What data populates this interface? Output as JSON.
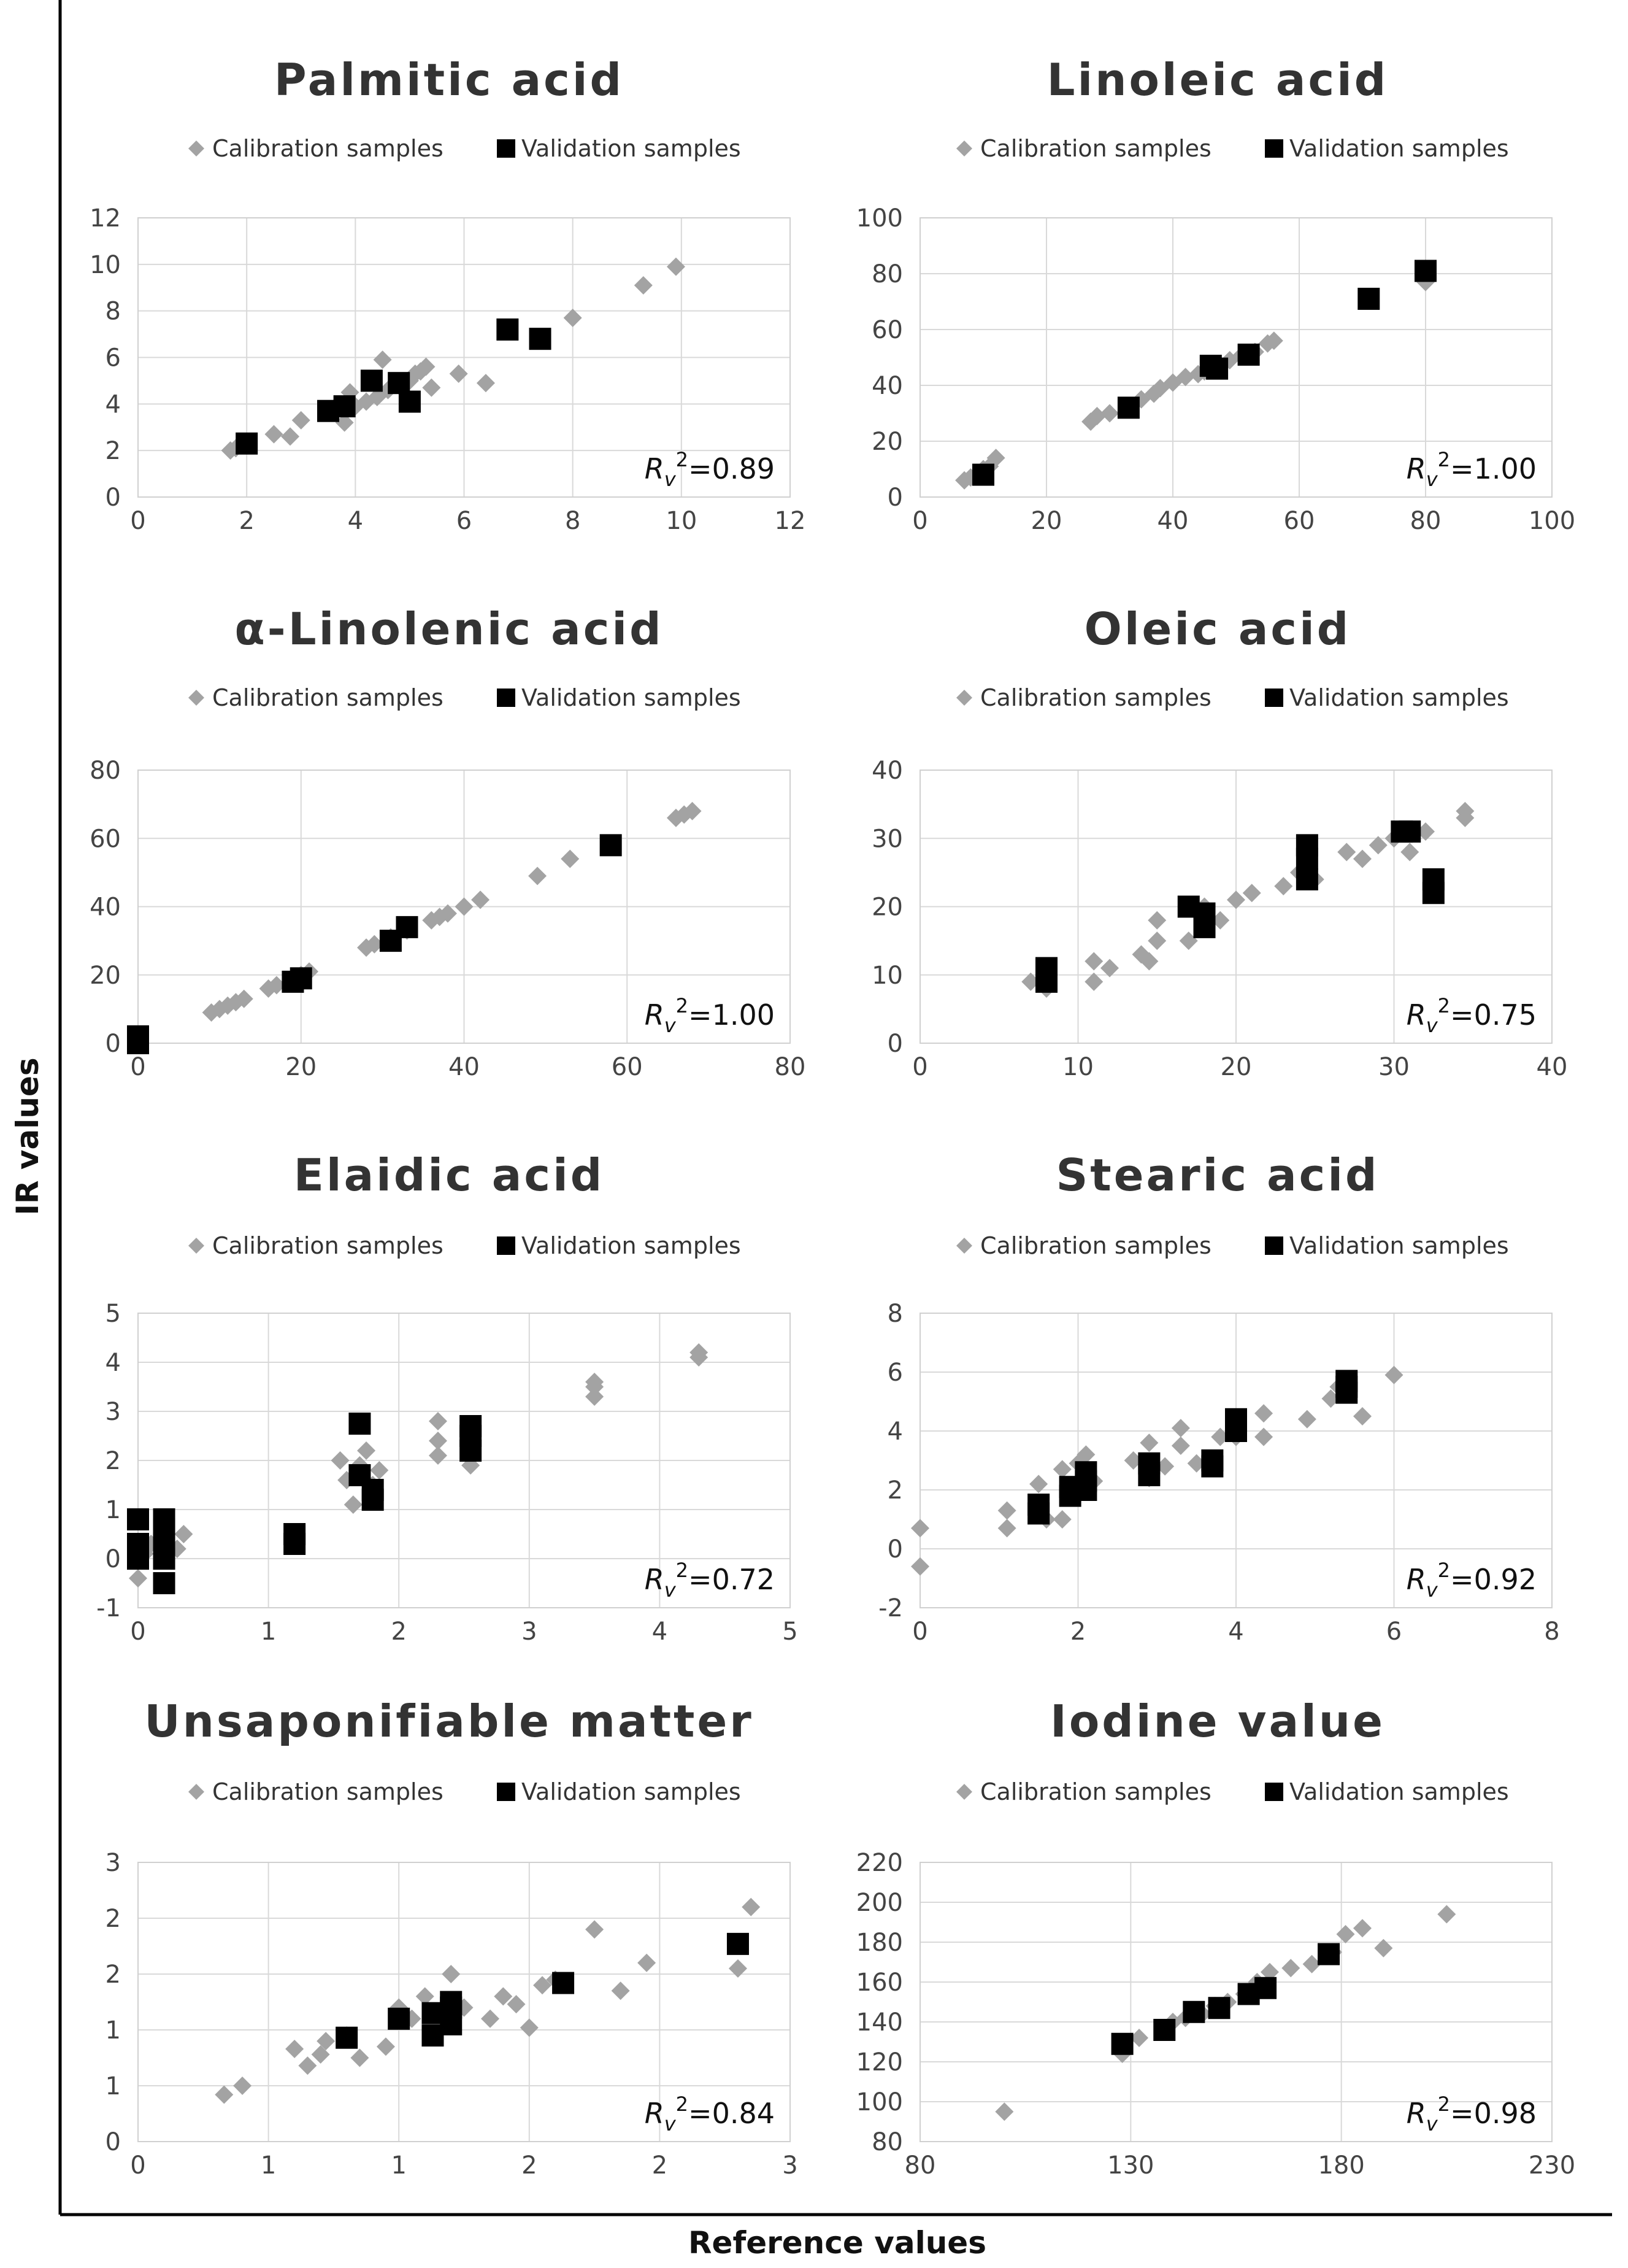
{
  "axes": {
    "y_label": "IR values",
    "x_label": "Reference values"
  },
  "colors": {
    "calibration": "#a3a3a3",
    "validation": "#000000",
    "grid": "#d9d9d9",
    "title": "#333333"
  },
  "chart_data": [
    {
      "type": "scatter",
      "title": "Palmitic acid",
      "legend": [
        "Calibration samples",
        "Validation samples"
      ],
      "r2_value": "=0.89",
      "xlim": [
        0,
        12
      ],
      "ylim": [
        0,
        12
      ],
      "xticks": [
        0,
        2,
        4,
        6,
        8,
        10,
        12
      ],
      "yticks": [
        0,
        2,
        4,
        6,
        8,
        10,
        12
      ],
      "series": [
        {
          "name": "Calibration samples",
          "marker": "diamond",
          "x": [
            1.7,
            1.8,
            2.5,
            2.8,
            3.0,
            3.6,
            3.8,
            4.0,
            4.2,
            4.5,
            4.6,
            4.8,
            5.0,
            5.0,
            5.1,
            5.2,
            5.3,
            5.4,
            5.9,
            6.4,
            8.0,
            9.3,
            9.9,
            3.9,
            4.4
          ],
          "y": [
            2.0,
            2.1,
            2.7,
            2.6,
            3.3,
            3.8,
            3.2,
            3.9,
            4.1,
            5.9,
            4.6,
            4.8,
            4.2,
            5.0,
            5.3,
            5.4,
            5.6,
            4.7,
            5.3,
            4.9,
            7.7,
            9.1,
            9.9,
            4.5,
            4.3
          ]
        },
        {
          "name": "Validation samples",
          "marker": "square",
          "x": [
            2.0,
            3.5,
            3.8,
            4.3,
            4.8,
            5.0,
            6.8,
            7.4
          ],
          "y": [
            2.3,
            3.7,
            3.9,
            5.0,
            4.9,
            4.1,
            7.2,
            6.8
          ]
        }
      ]
    },
    {
      "type": "scatter",
      "title": "Linoleic acid",
      "legend": [
        "Calibration samples",
        "Validation samples"
      ],
      "r2_value": "=1.00",
      "xlim": [
        0,
        100
      ],
      "ylim": [
        0,
        100
      ],
      "xticks": [
        0,
        20,
        40,
        60,
        80,
        100
      ],
      "yticks": [
        0,
        20,
        40,
        60,
        80,
        100
      ],
      "series": [
        {
          "name": "Calibration samples",
          "marker": "diamond",
          "x": [
            7,
            8,
            9,
            10,
            11,
            12,
            27,
            28,
            30,
            33,
            35,
            37,
            38,
            40,
            42,
            44,
            45,
            47,
            49,
            51,
            53,
            55,
            56,
            80
          ],
          "y": [
            6,
            7,
            8,
            10,
            11,
            14,
            27,
            29,
            30,
            32,
            35,
            37,
            39,
            41,
            43,
            44,
            45,
            47,
            49,
            51,
            52,
            55,
            56,
            77
          ]
        },
        {
          "name": "Validation samples",
          "marker": "square",
          "x": [
            10,
            33,
            46,
            47,
            52,
            71,
            80
          ],
          "y": [
            8,
            32,
            47,
            46,
            51,
            71,
            81
          ]
        }
      ]
    },
    {
      "type": "scatter",
      "title": "α-Linolenic acid",
      "legend": [
        "Calibration samples",
        "Validation samples"
      ],
      "r2_value": "=1.00",
      "xlim": [
        0,
        80
      ],
      "ylim": [
        0,
        80
      ],
      "xticks": [
        0,
        20,
        40,
        60,
        80
      ],
      "yticks": [
        0,
        20,
        40,
        60,
        80
      ],
      "series": [
        {
          "name": "Calibration samples",
          "marker": "diamond",
          "x": [
            9,
            10,
            11,
            12,
            13,
            16,
            17,
            20,
            21,
            28,
            29,
            31,
            33,
            36,
            37,
            38,
            40,
            42,
            49,
            53,
            66,
            67,
            68
          ],
          "y": [
            9,
            10,
            11,
            12,
            13,
            16,
            17,
            20,
            21,
            28,
            29,
            31,
            33,
            36,
            37,
            38,
            40,
            42,
            49,
            54,
            66,
            67,
            68
          ]
        },
        {
          "name": "Validation samples",
          "marker": "square",
          "x": [
            0,
            0,
            19,
            20,
            31,
            33,
            58
          ],
          "y": [
            0,
            2,
            18,
            19,
            30,
            34,
            58
          ]
        }
      ]
    },
    {
      "type": "scatter",
      "title": "Oleic acid",
      "legend": [
        "Calibration samples",
        "Validation samples"
      ],
      "r2_value": "=0.75",
      "xlim": [
        0,
        40
      ],
      "ylim": [
        0,
        40
      ],
      "xticks": [
        0,
        10,
        20,
        30,
        40
      ],
      "yticks": [
        0,
        10,
        20,
        30,
        40
      ],
      "series": [
        {
          "name": "Calibration samples",
          "marker": "diamond",
          "x": [
            7,
            8,
            8,
            11,
            11,
            12,
            14,
            14.5,
            15,
            15,
            17,
            18,
            19,
            20,
            21,
            23,
            24,
            25,
            27,
            28,
            29,
            30,
            31,
            32,
            34.5,
            34.5
          ],
          "y": [
            9,
            10,
            8,
            9,
            12,
            11,
            13,
            12,
            15,
            18,
            15,
            20,
            18,
            21,
            22,
            23,
            25,
            24,
            28,
            27,
            29,
            30,
            28,
            31,
            34,
            33
          ]
        },
        {
          "name": "Validation samples",
          "marker": "square",
          "x": [
            8,
            8,
            17,
            18,
            18,
            24.5,
            24.5,
            24.5,
            30.5,
            31,
            32.5,
            32.5
          ],
          "y": [
            9,
            11,
            20,
            17,
            19,
            24,
            27,
            29,
            31,
            31,
            22,
            24
          ]
        }
      ]
    },
    {
      "type": "scatter",
      "title": "Elaidic acid",
      "legend": [
        "Calibration samples",
        "Validation samples"
      ],
      "r2_value": "=0.72",
      "xlim": [
        0,
        5
      ],
      "ylim": [
        -1,
        5
      ],
      "xticks": [
        0,
        1,
        2,
        3,
        4,
        5
      ],
      "yticks": [
        -1,
        0,
        1,
        2,
        3,
        4,
        5
      ],
      "series": [
        {
          "name": "Calibration samples",
          "marker": "diamond",
          "x": [
            0.0,
            0.05,
            0.1,
            0.2,
            0.3,
            0.35,
            1.55,
            1.6,
            1.65,
            1.7,
            1.75,
            1.8,
            1.85,
            2.3,
            2.3,
            2.3,
            2.55,
            2.55,
            3.5,
            3.5,
            3.5,
            4.3,
            4.3
          ],
          "y": [
            -0.4,
            0.1,
            0.3,
            0.5,
            0.2,
            0.5,
            2.0,
            1.6,
            1.1,
            1.9,
            2.2,
            1.5,
            1.8,
            2.1,
            2.4,
            2.8,
            1.9,
            2.3,
            3.5,
            3.3,
            3.6,
            4.1,
            4.2
          ]
        },
        {
          "name": "Validation samples",
          "marker": "square",
          "x": [
            0.0,
            0.0,
            0.0,
            0.2,
            0.2,
            0.2,
            0.2,
            0.2,
            1.2,
            1.2,
            1.7,
            1.7,
            1.8,
            1.8,
            2.55,
            2.55,
            2.55
          ],
          "y": [
            0.8,
            0.3,
            0.0,
            0.8,
            0.6,
            0.3,
            0.0,
            -0.5,
            0.3,
            0.5,
            2.75,
            1.7,
            1.2,
            1.4,
            2.2,
            2.5,
            2.7
          ]
        }
      ]
    },
    {
      "type": "scatter",
      "title": "Stearic acid",
      "legend": [
        "Calibration samples",
        "Validation samples"
      ],
      "r2_value": "=0.92",
      "xlim": [
        0,
        8
      ],
      "ylim": [
        -2,
        8
      ],
      "xticks": [
        0,
        2,
        4,
        6,
        8
      ],
      "yticks": [
        -2,
        0,
        2,
        4,
        6,
        8
      ],
      "series": [
        {
          "name": "Calibration samples",
          "marker": "diamond",
          "x": [
            0.0,
            0.0,
            1.1,
            1.1,
            1.5,
            1.6,
            1.8,
            1.8,
            2.0,
            2.1,
            2.2,
            2.7,
            2.9,
            2.9,
            3.1,
            3.3,
            3.3,
            3.5,
            3.8,
            4.0,
            4.35,
            4.35,
            4.9,
            5.2,
            5.3,
            5.6,
            6.0
          ],
          "y": [
            0.7,
            -0.6,
            0.7,
            1.3,
            2.2,
            1.0,
            1.0,
            2.7,
            2.9,
            3.2,
            2.3,
            3.0,
            2.4,
            3.6,
            2.8,
            3.5,
            4.1,
            2.9,
            3.8,
            3.8,
            4.6,
            3.8,
            4.4,
            5.1,
            5.5,
            4.5,
            5.9
          ]
        },
        {
          "name": "Validation samples",
          "marker": "square",
          "x": [
            1.5,
            1.5,
            1.9,
            1.9,
            2.1,
            2.1,
            2.1,
            2.9,
            2.9,
            3.7,
            3.7,
            4.0,
            4.0,
            5.4,
            5.4,
            5.4
          ],
          "y": [
            1.2,
            1.5,
            1.8,
            2.1,
            2.0,
            2.3,
            2.6,
            2.5,
            2.9,
            2.8,
            3.0,
            4.0,
            4.4,
            5.3,
            5.5,
            5.7
          ]
        }
      ]
    },
    {
      "type": "scatter",
      "title": "Unsaponifiable matter",
      "legend": [
        "Calibration samples",
        "Validation samples"
      ],
      "r2_value": "=0.84",
      "xlim": [
        0,
        2.5
      ],
      "ylim": [
        0,
        2.5
      ],
      "xticks": [
        0,
        0.5,
        1,
        1.5,
        2,
        2.5
      ],
      "ytickvalues": [
        0,
        0.5,
        1,
        1.5,
        2,
        2.5
      ],
      "xticklabels": [
        "0",
        "1",
        "1",
        "2",
        "2",
        "3"
      ],
      "yticklabels": [
        "0",
        "1",
        "1",
        "2",
        "2",
        "3"
      ],
      "series": [
        {
          "name": "Calibration samples",
          "marker": "diamond",
          "x": [
            0.33,
            0.4,
            0.6,
            0.65,
            0.7,
            0.72,
            0.8,
            0.85,
            0.95,
            1.0,
            1.05,
            1.1,
            1.2,
            1.25,
            1.35,
            1.4,
            1.45,
            1.5,
            1.55,
            1.6,
            1.75,
            1.85,
            1.95,
            2.3,
            2.35
          ],
          "y": [
            0.42,
            0.5,
            0.83,
            0.68,
            0.78,
            0.9,
            0.95,
            0.75,
            0.85,
            1.2,
            1.1,
            1.3,
            1.5,
            1.2,
            1.1,
            1.3,
            1.23,
            1.02,
            1.4,
            1.45,
            1.9,
            1.35,
            1.6,
            1.55,
            2.1
          ]
        },
        {
          "name": "Validation samples",
          "marker": "square",
          "x": [
            0.8,
            1.0,
            1.13,
            1.13,
            1.2,
            1.2,
            1.2,
            1.63,
            2.3
          ],
          "y": [
            0.93,
            1.1,
            0.95,
            1.15,
            1.05,
            1.2,
            1.25,
            1.42,
            1.77
          ]
        }
      ]
    },
    {
      "type": "scatter",
      "title": "Iodine value",
      "legend": [
        "Calibration samples",
        "Validation samples"
      ],
      "r2_value": "=0.98",
      "xlim": [
        80,
        230
      ],
      "ylim": [
        80,
        220
      ],
      "xticks": [
        80,
        130,
        180,
        230
      ],
      "yticks": [
        80,
        100,
        120,
        140,
        160,
        180,
        200,
        220
      ],
      "series": [
        {
          "name": "Calibration samples",
          "marker": "diamond",
          "x": [
            100,
            128,
            132,
            138,
            140,
            143,
            147,
            150,
            153,
            157,
            160,
            163,
            168,
            173,
            178,
            181,
            185,
            190,
            205
          ],
          "y": [
            95,
            124,
            132,
            136,
            140,
            142,
            144,
            148,
            150,
            154,
            160,
            165,
            167,
            169,
            175,
            184,
            187,
            177,
            194
          ]
        },
        {
          "name": "Validation samples",
          "marker": "square",
          "x": [
            128,
            138,
            145,
            151,
            158,
            162,
            177
          ],
          "y": [
            129,
            136,
            145,
            147,
            154,
            157,
            174
          ]
        }
      ]
    }
  ]
}
